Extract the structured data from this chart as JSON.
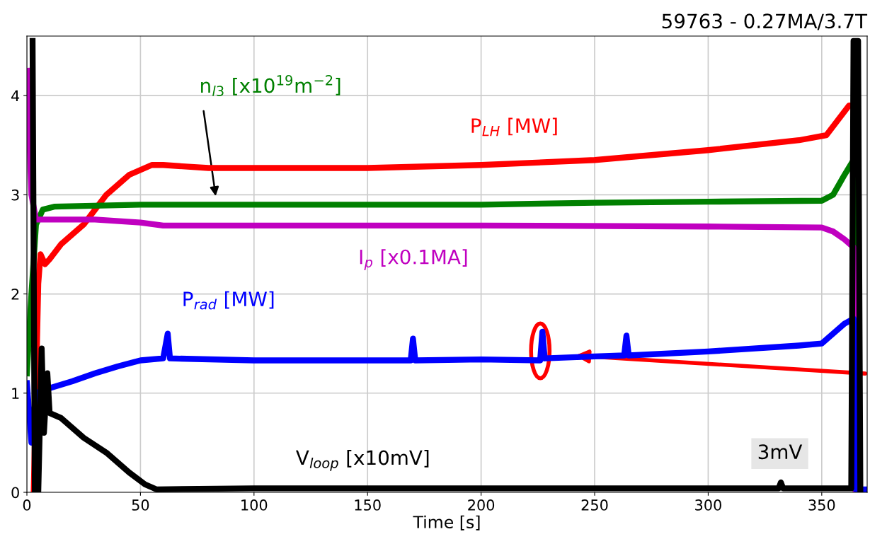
{
  "chart_data": {
    "type": "line",
    "title": "59763 - 0.27MA/3.7T",
    "xlabel": "Time [s]",
    "xlim": [
      0,
      370
    ],
    "ylim": [
      0,
      4.6
    ],
    "xticks": [
      0,
      50,
      100,
      150,
      200,
      250,
      300,
      350
    ],
    "yticks": [
      0,
      1,
      2,
      3,
      4
    ],
    "grid": true,
    "legend": false,
    "marker": "none",
    "line_style": "solid",
    "annotations": [
      "3mV"
    ],
    "series": [
      {
        "name": "P$_{LH}$ [MW]",
        "color": "#ff0000",
        "x": [
          3,
          5,
          6,
          8,
          10,
          15,
          20,
          25,
          30,
          35,
          40,
          45,
          50,
          55,
          60,
          80,
          100,
          150,
          200,
          250,
          300,
          340,
          352,
          357,
          362,
          364,
          365
        ],
        "values": [
          0,
          2.1,
          2.4,
          2.3,
          2.35,
          2.5,
          2.6,
          2.7,
          2.85,
          3.0,
          3.1,
          3.2,
          3.25,
          3.3,
          3.3,
          3.27,
          3.27,
          3.27,
          3.3,
          3.35,
          3.45,
          3.55,
          3.6,
          3.75,
          3.9,
          3.9,
          0
        ]
      },
      {
        "name": "n$_{l3}$ [x10$^{19}$m$^{−2}$]",
        "color": "#008000",
        "x": [
          0,
          2,
          4,
          7,
          12,
          50,
          100,
          150,
          200,
          250,
          300,
          350,
          355,
          360,
          364,
          365
        ],
        "values": [
          1.2,
          2.0,
          2.7,
          2.85,
          2.88,
          2.9,
          2.9,
          2.9,
          2.9,
          2.92,
          2.93,
          2.94,
          3.0,
          3.2,
          3.35,
          0
        ]
      },
      {
        "name": "I$_{p}$ [x0.1MA]",
        "color": "#c000c0",
        "x": [
          0,
          2,
          4,
          10,
          30,
          50,
          60,
          100,
          200,
          300,
          350,
          355,
          360,
          364,
          365
        ],
        "values": [
          4.25,
          3.0,
          2.75,
          2.75,
          2.75,
          2.72,
          2.69,
          2.69,
          2.69,
          2.68,
          2.67,
          2.63,
          2.55,
          2.47,
          0
        ]
      },
      {
        "name": "P$_{rad}$ [MW]",
        "color": "#0000ff",
        "x": [
          0,
          2,
          4,
          10,
          20,
          30,
          40,
          50,
          60,
          62,
          63,
          100,
          150,
          169,
          170,
          171,
          200,
          226,
          227,
          228,
          250,
          263,
          264,
          265,
          300,
          340,
          350,
          355,
          360,
          364,
          365,
          370
        ],
        "values": [
          1.1,
          0.5,
          1.0,
          1.05,
          1.12,
          1.2,
          1.27,
          1.33,
          1.35,
          1.6,
          1.35,
          1.33,
          1.33,
          1.33,
          1.55,
          1.33,
          1.34,
          1.33,
          1.62,
          1.35,
          1.37,
          1.38,
          1.58,
          1.38,
          1.42,
          1.48,
          1.5,
          1.6,
          1.7,
          1.75,
          0.03,
          0.03
        ]
      },
      {
        "name": "V$_{loop}$ [x10mV]",
        "color": "#000000",
        "x": [
          2.5,
          3.5,
          5,
          6.5,
          7.5,
          9,
          10,
          15,
          25,
          35,
          45,
          52,
          57,
          100,
          200,
          300,
          331,
          332,
          333,
          363,
          364,
          366,
          367
        ],
        "values": [
          4.55,
          0,
          0,
          1.45,
          0.6,
          1.2,
          0.8,
          0.75,
          0.55,
          0.4,
          0.2,
          0.08,
          0.03,
          0.04,
          0.04,
          0.04,
          0.04,
          0.1,
          0.04,
          0.04,
          4.55,
          4.55,
          0
        ]
      }
    ]
  }
}
